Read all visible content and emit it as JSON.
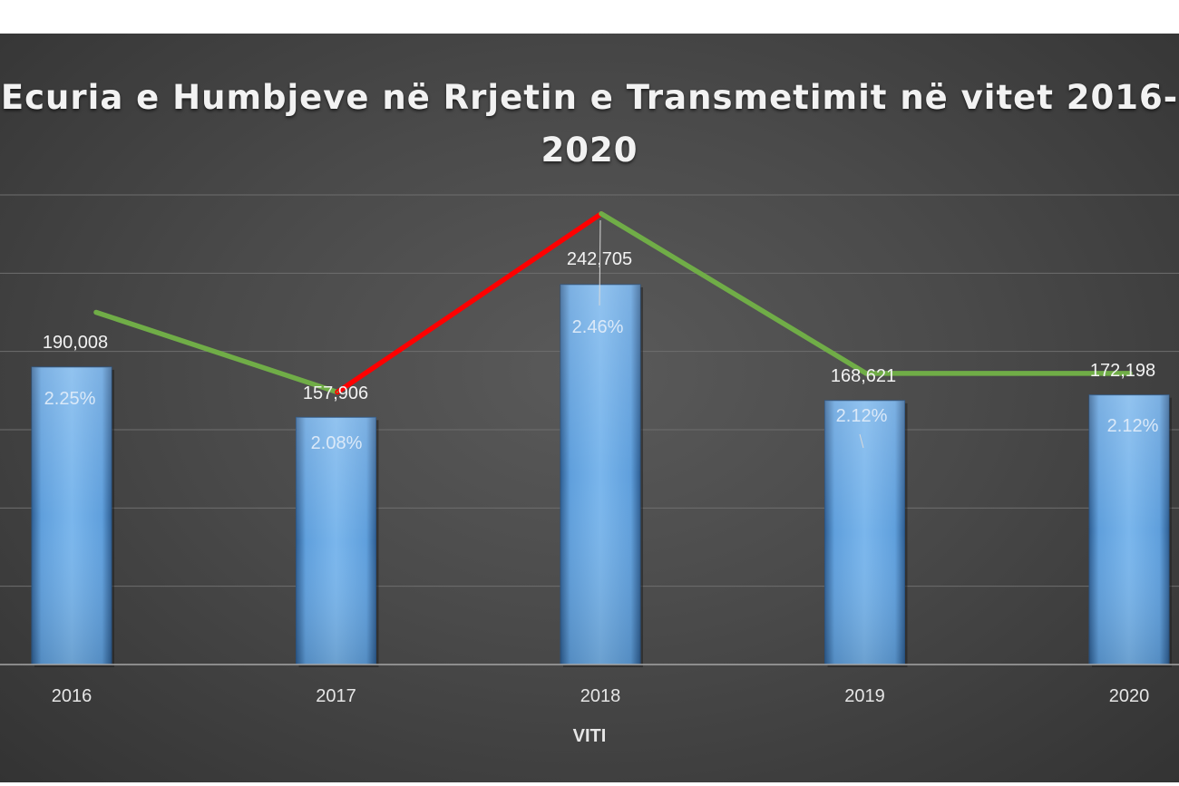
{
  "chart_data": {
    "type": "bar",
    "title": "Ecuria e Humbjeve në Rrjetin e Transmetimit në vitet 2016-\n2020",
    "xlabel": "VITI",
    "ylabel": "",
    "categories": [
      "2016",
      "2017",
      "2018",
      "2019",
      "2020"
    ],
    "series": [
      {
        "type": "bar",
        "values": [
          190008,
          157906,
          242705,
          168621,
          172198
        ],
        "value_labels": [
          "190,008",
          "157,906",
          "242,705",
          "168,621",
          "172,198"
        ],
        "color": "#5b9bd5"
      },
      {
        "type": "line",
        "values": [
          2.25,
          2.08,
          2.46,
          2.12,
          2.12
        ],
        "value_labels": [
          "2.25%",
          "2.08%",
          "2.46%",
          "2.12%",
          "2.12%"
        ],
        "color": "#70ad47",
        "highlight_segment": {
          "from": "2017",
          "to": "2018",
          "color": "#ff0000"
        }
      }
    ],
    "ylim": [
      0,
      300000
    ],
    "y2lim": [
      1.5,
      2.5
    ],
    "grid": true,
    "legend": "none"
  }
}
